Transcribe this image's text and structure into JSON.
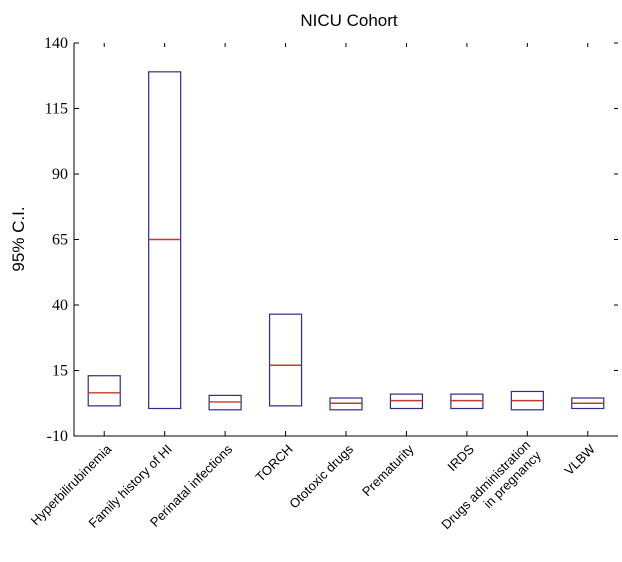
{
  "chart_data": {
    "type": "box",
    "title": "NICU Cohort",
    "ylabel": "95% C.I.",
    "xlabel": "",
    "ylim": [
      -10,
      140
    ],
    "yticks": [
      140,
      115,
      90,
      65,
      40,
      15,
      -10
    ],
    "ytick_labels": [
      "140",
      "115",
      "90",
      "65",
      "40",
      "15",
      "-10"
    ],
    "categories": [
      [
        "Hyperbilirubinemia"
      ],
      [
        "Family history of HI"
      ],
      [
        "Perinatal infections"
      ],
      [
        "TORCH"
      ],
      [
        "Ototoxic drugs"
      ],
      [
        "Prematurity"
      ],
      [
        "IRDS"
      ],
      [
        "Drugs administration",
        "in pregnancy"
      ],
      [
        "VLBW"
      ]
    ],
    "boxes": [
      {
        "low": 1.5,
        "median": 6.5,
        "high": 13
      },
      {
        "low": 0.5,
        "median": 65,
        "high": 129
      },
      {
        "low": 0,
        "median": 3,
        "high": 5.5
      },
      {
        "low": 1.5,
        "median": 17,
        "high": 36.5
      },
      {
        "low": 0,
        "median": 2.5,
        "high": 4.5
      },
      {
        "low": 0.5,
        "median": 3.5,
        "high": 6
      },
      {
        "low": 0.5,
        "median": 3.5,
        "high": 6
      },
      {
        "low": 0,
        "median": 3.5,
        "high": 7
      },
      {
        "low": 0.5,
        "median": 2.5,
        "high": 4.5
      }
    ],
    "grid": false,
    "colors": {
      "box": "#2c2c8c",
      "median": "#c0392b"
    }
  }
}
